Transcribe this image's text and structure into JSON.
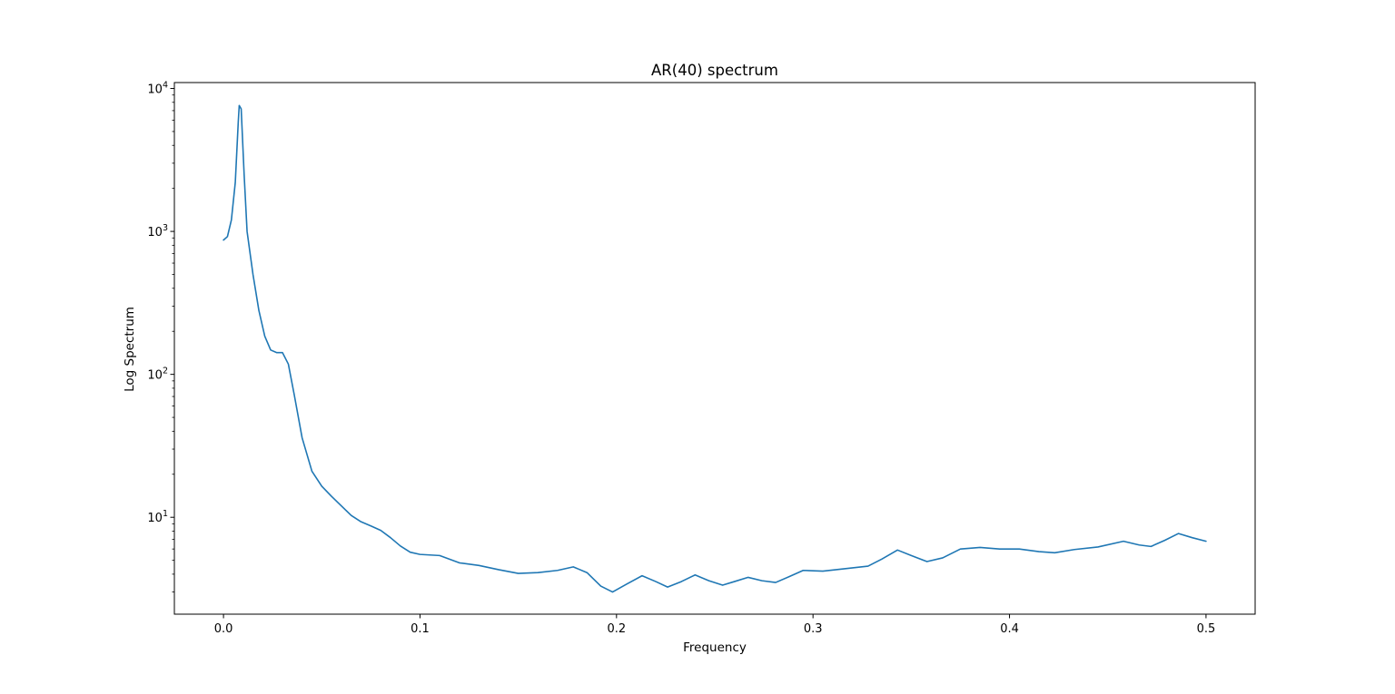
{
  "chart_data": {
    "type": "line",
    "title": "AR(40) spectrum",
    "xlabel": "Frequency",
    "ylabel": "Log Spectrum",
    "xscale": "linear",
    "yscale": "log",
    "xlim": [
      -0.025,
      0.525
    ],
    "ylim": [
      2.1,
      11000
    ],
    "grid": false,
    "x_ticks": [
      {
        "value": 0.0,
        "label": "0.0"
      },
      {
        "value": 0.1,
        "label": "0.1"
      },
      {
        "value": 0.2,
        "label": "0.2"
      },
      {
        "value": 0.3,
        "label": "0.3"
      },
      {
        "value": 0.4,
        "label": "0.4"
      },
      {
        "value": 0.5,
        "label": "0.5"
      }
    ],
    "y_ticks": [
      {
        "value": 10,
        "base": "10",
        "exponent": "1"
      },
      {
        "value": 100,
        "base": "10",
        "exponent": "2"
      },
      {
        "value": 1000,
        "base": "10",
        "exponent": "3"
      },
      {
        "value": 10000,
        "base": "10",
        "exponent": "4"
      }
    ],
    "series": [
      {
        "color": "#1f77b4",
        "points": [
          [
            0.0,
            870
          ],
          [
            0.002,
            920
          ],
          [
            0.004,
            1200
          ],
          [
            0.006,
            2200
          ],
          [
            0.0075,
            5800
          ],
          [
            0.008,
            7600
          ],
          [
            0.009,
            7200
          ],
          [
            0.0105,
            2500
          ],
          [
            0.012,
            1000
          ],
          [
            0.015,
            500
          ],
          [
            0.018,
            280
          ],
          [
            0.021,
            185
          ],
          [
            0.024,
            148
          ],
          [
            0.027,
            142
          ],
          [
            0.03,
            142
          ],
          [
            0.033,
            118
          ],
          [
            0.036,
            72
          ],
          [
            0.04,
            36
          ],
          [
            0.045,
            21
          ],
          [
            0.05,
            16.5
          ],
          [
            0.055,
            14
          ],
          [
            0.06,
            12
          ],
          [
            0.065,
            10.3
          ],
          [
            0.07,
            9.3
          ],
          [
            0.075,
            8.7
          ],
          [
            0.08,
            8.1
          ],
          [
            0.085,
            7.2
          ],
          [
            0.09,
            6.3
          ],
          [
            0.095,
            5.7
          ],
          [
            0.1,
            5.5
          ],
          [
            0.11,
            5.4
          ],
          [
            0.12,
            4.8
          ],
          [
            0.13,
            4.6
          ],
          [
            0.14,
            4.3
          ],
          [
            0.15,
            4.05
          ],
          [
            0.16,
            4.1
          ],
          [
            0.17,
            4.25
          ],
          [
            0.178,
            4.5
          ],
          [
            0.185,
            4.1
          ],
          [
            0.192,
            3.3
          ],
          [
            0.198,
            3.0
          ],
          [
            0.205,
            3.4
          ],
          [
            0.213,
            3.9
          ],
          [
            0.22,
            3.55
          ],
          [
            0.226,
            3.25
          ],
          [
            0.233,
            3.55
          ],
          [
            0.24,
            3.95
          ],
          [
            0.247,
            3.6
          ],
          [
            0.254,
            3.35
          ],
          [
            0.26,
            3.55
          ],
          [
            0.267,
            3.8
          ],
          [
            0.274,
            3.6
          ],
          [
            0.281,
            3.5
          ],
          [
            0.288,
            3.85
          ],
          [
            0.295,
            4.25
          ],
          [
            0.305,
            4.2
          ],
          [
            0.315,
            4.35
          ],
          [
            0.328,
            4.55
          ],
          [
            0.335,
            5.1
          ],
          [
            0.343,
            5.9
          ],
          [
            0.35,
            5.4
          ],
          [
            0.358,
            4.9
          ],
          [
            0.366,
            5.2
          ],
          [
            0.375,
            6.0
          ],
          [
            0.385,
            6.15
          ],
          [
            0.395,
            6.0
          ],
          [
            0.405,
            6.0
          ],
          [
            0.415,
            5.75
          ],
          [
            0.423,
            5.65
          ],
          [
            0.433,
            5.95
          ],
          [
            0.445,
            6.2
          ],
          [
            0.458,
            6.8
          ],
          [
            0.466,
            6.4
          ],
          [
            0.472,
            6.25
          ],
          [
            0.479,
            6.9
          ],
          [
            0.486,
            7.7
          ],
          [
            0.493,
            7.2
          ],
          [
            0.5,
            6.8
          ]
        ]
      }
    ]
  }
}
